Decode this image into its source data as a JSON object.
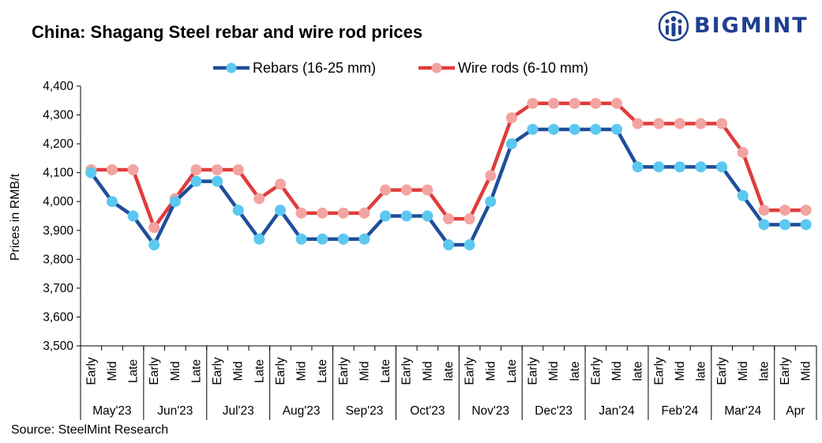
{
  "header": {
    "title": "China: Shagang Steel rebar and wire rod prices"
  },
  "logo": {
    "text": "BIGMINT",
    "icon": "people-icon"
  },
  "source": "Source: SteelMint Research",
  "colors": {
    "rebar_line": "#1f4e9c",
    "rebar_marker": "#5bc8f0",
    "wire_line": "#e03c3c",
    "wire_marker": "#f2a4a0",
    "brand": "#1f3f8f"
  },
  "chart_data": {
    "type": "line",
    "title": "China: Shagang Steel rebar and wire rod prices",
    "ylabel": "Prices in RMB/t",
    "xlabel": "",
    "ylim": [
      3500,
      4400
    ],
    "ytick_step": 100,
    "ytick_labels": [
      "3,500",
      "3,600",
      "3,700",
      "3,800",
      "3,900",
      "4,000",
      "4,100",
      "4,200",
      "4,300",
      "4,400"
    ],
    "legend_position": "top-center",
    "grid": false,
    "categories": [
      "Early",
      "Mid",
      "Late",
      "Early",
      "Mid",
      "Late",
      "Early",
      "Mid",
      "Late",
      "Early",
      "Mid",
      "Late",
      "Early",
      "Mid",
      "Late",
      "Early",
      "Mid",
      "late",
      "Early",
      "Mid",
      "Late",
      "Early",
      "Mid",
      "late",
      "Early",
      "Mid",
      "late",
      "Early",
      "Mid",
      "late",
      "Early",
      "Mid",
      "late",
      "Early",
      "Mid"
    ],
    "groups": [
      {
        "label": "May'23",
        "count": 3
      },
      {
        "label": "Jun'23",
        "count": 3
      },
      {
        "label": "Jul'23",
        "count": 3
      },
      {
        "label": "Aug'23",
        "count": 3
      },
      {
        "label": "Sep'23",
        "count": 3
      },
      {
        "label": "Oct'23",
        "count": 3
      },
      {
        "label": "Nov'23",
        "count": 3
      },
      {
        "label": "Dec'23",
        "count": 3
      },
      {
        "label": "Jan'24",
        "count": 3
      },
      {
        "label": "Feb'24",
        "count": 3
      },
      {
        "label": "Mar'24",
        "count": 3
      },
      {
        "label": "Apr",
        "count": 2
      }
    ],
    "series": [
      {
        "name": "Rebars (16-25 mm)",
        "key": "rebar",
        "values": [
          4100,
          4000,
          3950,
          3850,
          4000,
          4070,
          4070,
          3970,
          3870,
          3970,
          3870,
          3870,
          3870,
          3870,
          3950,
          3950,
          3950,
          3850,
          3850,
          4000,
          4200,
          4250,
          4250,
          4250,
          4250,
          4250,
          4120,
          4120,
          4120,
          4120,
          4120,
          4020,
          3920,
          3920,
          3920
        ]
      },
      {
        "name": "Wire rods (6-10 mm)",
        "key": "wire",
        "values": [
          4110,
          4110,
          4110,
          3910,
          4010,
          4110,
          4110,
          4110,
          4010,
          4060,
          3960,
          3960,
          3960,
          3960,
          4040,
          4040,
          4040,
          3940,
          3940,
          4090,
          4290,
          4340,
          4340,
          4340,
          4340,
          4340,
          4270,
          4270,
          4270,
          4270,
          4270,
          4170,
          3970,
          3970,
          3970
        ]
      }
    ]
  }
}
